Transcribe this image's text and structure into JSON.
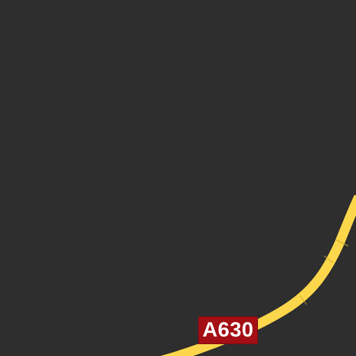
{
  "map": {
    "background_color": "#2e2e2e",
    "roads": [
      {
        "ref": "A630",
        "color": "#fdd74b",
        "shield_color": "#a30f14",
        "shield_text_color": "#ffffff"
      }
    ]
  }
}
